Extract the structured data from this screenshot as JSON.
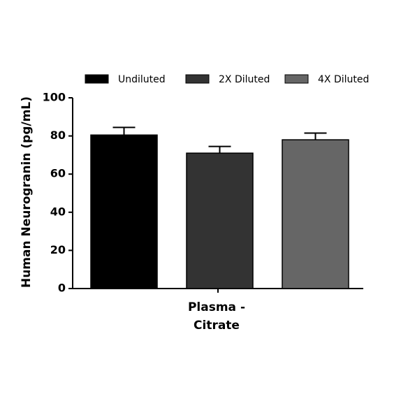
{
  "chart_data": {
    "type": "bar",
    "y_label": "Human Neurogranin (pg/mL)",
    "categories": [
      "Plasma - Citrate"
    ],
    "series": [
      {
        "name": "Undiluted",
        "color": "#000000",
        "values": [
          80.5
        ],
        "errors": [
          4
        ]
      },
      {
        "name": "2X Diluted",
        "color": "#333333",
        "values": [
          71
        ],
        "errors": [
          3.5
        ]
      },
      {
        "name": "4X Diluted",
        "color": "#666666",
        "values": [
          78
        ],
        "errors": [
          3.5
        ]
      }
    ],
    "ylim": [
      0,
      100
    ],
    "yticks": [
      0,
      20,
      40,
      60,
      80,
      100
    ],
    "legend": "top"
  }
}
